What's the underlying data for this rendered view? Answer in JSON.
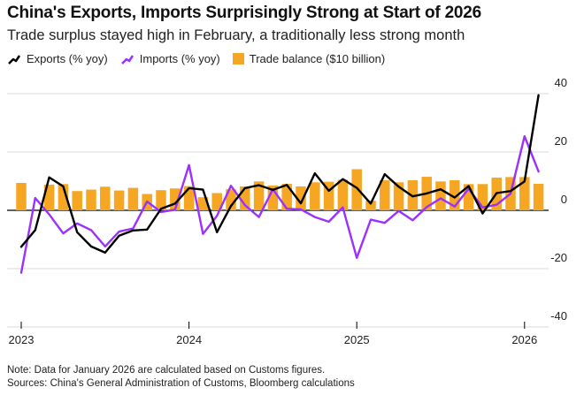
{
  "title": "China's Exports, Imports Surprisingly Strong at Start of 2026",
  "subtitle": "Trade surplus stayed high in February, a traditionally less strong month",
  "legend": [
    {
      "label": "Exports (% yoy)",
      "icon": "line-swatch",
      "color": "#000000"
    },
    {
      "label": "Imports (% yoy)",
      "icon": "line-swatch",
      "color": "#9b30ff"
    },
    {
      "label": "Trade balance ($10 billion)",
      "icon": "square-swatch",
      "color": "#f5a623"
    }
  ],
  "note": "Note: Data for January 2026 are calculated based on Customs figures.",
  "source": "Sources: China's General Administration of Customs, Bloomberg calculations",
  "chart_data": {
    "type": "bar+line",
    "title": "China's Exports, Imports Surprisingly Strong at Start of 2026",
    "x": [
      "2023-01",
      "2023-02",
      "2023-03",
      "2023-04",
      "2023-05",
      "2023-06",
      "2023-07",
      "2023-08",
      "2023-09",
      "2023-10",
      "2023-11",
      "2023-12",
      "2024-01",
      "2024-02",
      "2024-03",
      "2024-04",
      "2024-05",
      "2024-06",
      "2024-07",
      "2024-08",
      "2024-09",
      "2024-10",
      "2024-11",
      "2024-12",
      "2025-01",
      "2025-02",
      "2025-03",
      "2025-04",
      "2025-05",
      "2025-06",
      "2025-07",
      "2025-08",
      "2025-09",
      "2025-10",
      "2025-11",
      "2025-12",
      "2026-01",
      "2026-02"
    ],
    "x_ticks": [
      "2023",
      "2024",
      "2025",
      "2026"
    ],
    "y_ticks": [
      40,
      20,
      0,
      -20,
      -40
    ],
    "ylim": [
      -40,
      40
    ],
    "y_axis_position": "right",
    "series": [
      {
        "name": "Trade balance ($10 billion)",
        "type": "bar",
        "color": "#f5a623",
        "values": [
          9.4,
          null,
          8.8,
          9.0,
          6.6,
          7.1,
          8.1,
          6.8,
          7.7,
          5.6,
          6.9,
          7.5,
          8.3,
          4.5,
          5.9,
          7.2,
          8.2,
          9.9,
          8.5,
          9.1,
          8.2,
          9.6,
          9.8,
          10.5,
          14.1,
          3.3,
          10.3,
          9.6,
          10.3,
          11.5,
          9.9,
          10.3,
          9.0,
          9.0,
          11.2,
          11.4,
          11.4,
          9.1
        ]
      },
      {
        "name": "Exports (% yoy)",
        "type": "line",
        "color": "#000000",
        "values": [
          -12.5,
          -6.8,
          11.3,
          8.2,
          -7.5,
          -12.4,
          -14.5,
          -8.7,
          -6.9,
          -6.6,
          0.5,
          2.3,
          7.6,
          7.1,
          -7.5,
          1.5,
          7.6,
          8.6,
          7.0,
          8.7,
          2.4,
          12.7,
          6.7,
          10.7,
          7.7,
          2.3,
          12.4,
          8.1,
          4.8,
          5.8,
          7.2,
          4.4,
          8.3,
          -1.1,
          5.9,
          6.6,
          9.9,
          39.5
        ]
      },
      {
        "name": "Imports (% yoy)",
        "type": "line",
        "color": "#9b30ff",
        "values": [
          -21.4,
          4.2,
          -1.4,
          -7.9,
          -4.5,
          -6.8,
          -12.4,
          -7.3,
          -6.2,
          3.0,
          -0.6,
          0.2,
          15.5,
          -8.1,
          -1.9,
          8.4,
          1.8,
          -2.3,
          7.2,
          0.5,
          0.3,
          -2.3,
          -3.9,
          1.0,
          -16.3,
          -3.2,
          -4.3,
          -0.2,
          -3.4,
          1.1,
          4.1,
          1.3,
          7.4,
          1.0,
          1.9,
          5.7,
          25.4,
          13.3
        ]
      }
    ]
  }
}
